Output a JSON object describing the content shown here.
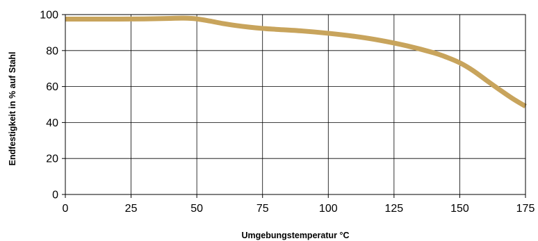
{
  "chart_data": {
    "type": "line",
    "xlabel": "Umgebungstemperatur °C",
    "ylabel": "Endfestigkeit in % auf Stahl",
    "xlim": [
      0,
      175
    ],
    "ylim": [
      0,
      100
    ],
    "xticks": [
      0,
      25,
      50,
      75,
      100,
      125,
      150,
      175
    ],
    "yticks": [
      0,
      20,
      40,
      60,
      80,
      100
    ],
    "grid": true,
    "legend": "none",
    "series": [
      {
        "color": "#c8a45c",
        "x": [
          0,
          10,
          20,
          30,
          40,
          45,
          50,
          55,
          60,
          65,
          70,
          75,
          80,
          90,
          100,
          110,
          120,
          130,
          140,
          145,
          150,
          155,
          160,
          165,
          170,
          175
        ],
        "y": [
          97.5,
          97.5,
          97.5,
          97.6,
          97.9,
          98.0,
          97.6,
          96.4,
          95.0,
          93.9,
          93.0,
          92.3,
          91.8,
          90.9,
          89.6,
          87.9,
          85.6,
          82.6,
          78.8,
          76.3,
          73.2,
          68.9,
          63.6,
          58.4,
          53.4,
          49.0
        ]
      }
    ]
  }
}
